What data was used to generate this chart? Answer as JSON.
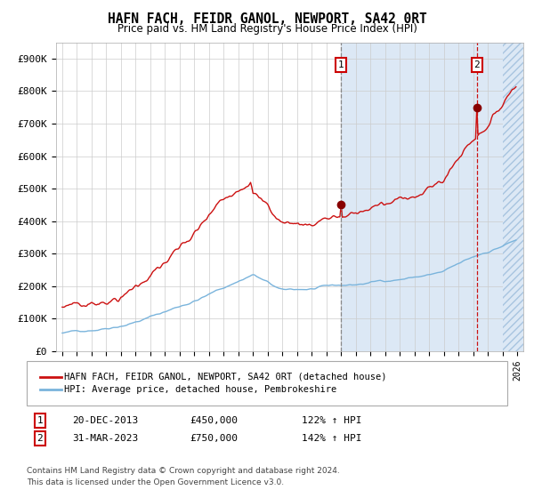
{
  "title": "HAFN FACH, FEIDR GANOL, NEWPORT, SA42 0RT",
  "subtitle": "Price paid vs. HM Land Registry's House Price Index (HPI)",
  "ylim": [
    0,
    950000
  ],
  "yticks": [
    0,
    100000,
    200000,
    300000,
    400000,
    500000,
    600000,
    700000,
    800000,
    900000
  ],
  "ytick_labels": [
    "£0",
    "£100K",
    "£200K",
    "£300K",
    "£400K",
    "£500K",
    "£600K",
    "£700K",
    "£800K",
    "£900K"
  ],
  "red_line_color": "#cc1111",
  "blue_line_color": "#7ab4dc",
  "shade_color": "#dce8f5",
  "hatch_color": "#c5d8ee",
  "annotation1": {
    "label": "1",
    "date_str": "20-DEC-2013",
    "price": 450000,
    "hpi_pct": "122% ↑ HPI"
  },
  "annotation2": {
    "label": "2",
    "date_str": "31-MAR-2023",
    "price": 750000,
    "hpi_pct": "142% ↑ HPI"
  },
  "legend_red": "HAFN FACH, FEIDR GANOL, NEWPORT, SA42 0RT (detached house)",
  "legend_blue": "HPI: Average price, detached house, Pembrokeshire",
  "footer1": "Contains HM Land Registry data © Crown copyright and database right 2024.",
  "footer2": "This data is licensed under the Open Government Licence v3.0."
}
